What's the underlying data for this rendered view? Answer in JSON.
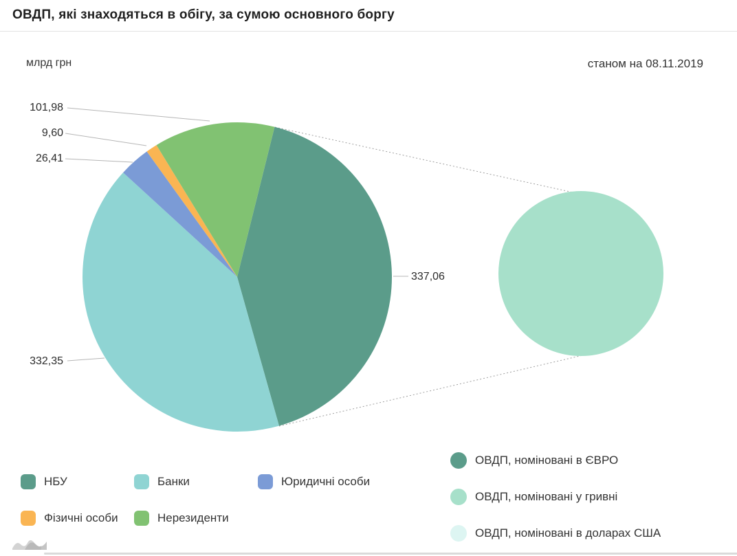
{
  "header": {
    "title": "ОВДП, які знаходяться в обігу, за сумою основного боргу"
  },
  "meta": {
    "unit_label": "млрд грн",
    "as_of_label": "станом на 08.11.2019"
  },
  "chart_data": {
    "type": "pie",
    "title": "ОВДП, які знаходяться в обігу, за сумою основного боргу",
    "unit": "млрд грн",
    "as_of": "станом на 08.11.2019",
    "start_angle_deg": 14,
    "direction": "clockwise",
    "segments": [
      {
        "label": "НБУ",
        "value": 337.06,
        "display": "337,06",
        "color": "#5b9c8a"
      },
      {
        "label": "Банки",
        "value": 332.35,
        "display": "332,35",
        "color": "#8fd4d3"
      },
      {
        "label": "Юридичні особи",
        "value": 26.41,
        "display": "26,41",
        "color": "#7b9bd6"
      },
      {
        "label": "Фізичні особи",
        "value": 9.6,
        "display": "9,60",
        "color": "#fab553"
      },
      {
        "label": "Нерезиденти",
        "value": 101.98,
        "display": "101,98",
        "color": "#81c272"
      }
    ],
    "breakout_circle": {
      "linked_segment": "НБУ",
      "fill_color": "#a7e0ca"
    },
    "currency_legend": [
      {
        "label": "ОВДП, номіновані в ЄВРО",
        "color": "#5b9c8a"
      },
      {
        "label": "ОВДП, номіновані у гривні",
        "color": "#a7e0ca"
      },
      {
        "label": "ОВДП, номіновані в доларах США",
        "color": "#ddf5f2"
      }
    ]
  }
}
